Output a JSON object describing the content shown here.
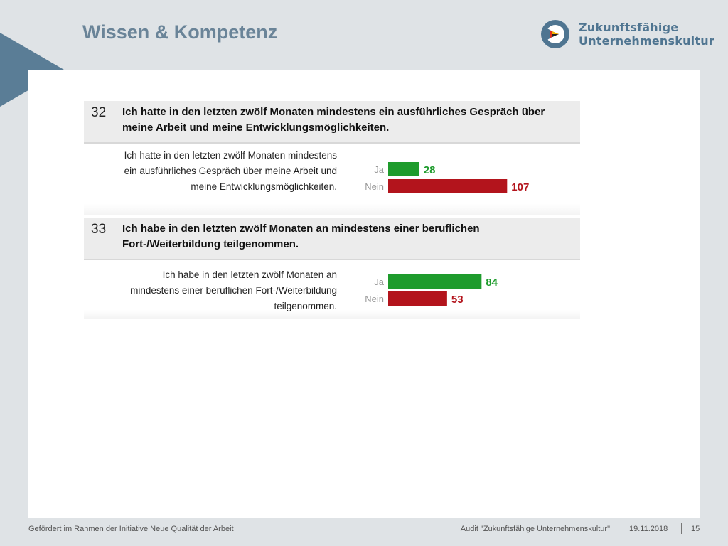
{
  "title": "Wissen & Kompetenz",
  "brand": {
    "line1": "Zukunftsfähige",
    "line2": "Unternehmenskultur"
  },
  "questions": [
    {
      "number": "32",
      "text": "Ich hatte in den letzten zwölf Monaten mindestens ein ausführliches Gespräch über meine Arbeit und meine Entwicklungsmöglichkeiten.",
      "subtext": "Ich hatte in den letzten zwölf Monaten mindestens ein ausführliches Gespräch über meine Arbeit und meine Entwicklungsmöglichkeiten."
    },
    {
      "number": "33",
      "text": "Ich habe in den letzten zwölf Monaten an mindestens einer beruflichen Fort-/Weiterbildung teilgenommen.",
      "subtext": "Ich habe in den letzten zwölf Monaten an mindestens einer beruflichen Fort-/Weiterbildung teilgenommen."
    }
  ],
  "chart_data": [
    {
      "type": "bar",
      "orientation": "horizontal",
      "categories": [
        "Ja",
        "Nein"
      ],
      "values": [
        28,
        107
      ],
      "colors": [
        "#1e9b2c",
        "#b3141c"
      ],
      "title": "",
      "xlabel": "",
      "ylabel": "",
      "xlim": [
        0,
        110
      ],
      "grid": false
    },
    {
      "type": "bar",
      "orientation": "horizontal",
      "categories": [
        "Ja",
        "Nein"
      ],
      "values": [
        84,
        53
      ],
      "colors": [
        "#1e9b2c",
        "#b3141c"
      ],
      "title": "",
      "xlabel": "",
      "ylabel": "",
      "xlim": [
        0,
        110
      ],
      "grid": false
    }
  ],
  "footer": {
    "left": "Gefördert im Rahmen der Initiative Neue Qualität der Arbeit",
    "audit": "Audit \"Zukunftsfähige Unternehmenskultur\"",
    "date": "19.11.2018",
    "page": "15"
  },
  "colors": {
    "accent": "#5a7d96",
    "title": "#6a8498",
    "ja": "#1e9b2c",
    "nein": "#b3141c"
  }
}
